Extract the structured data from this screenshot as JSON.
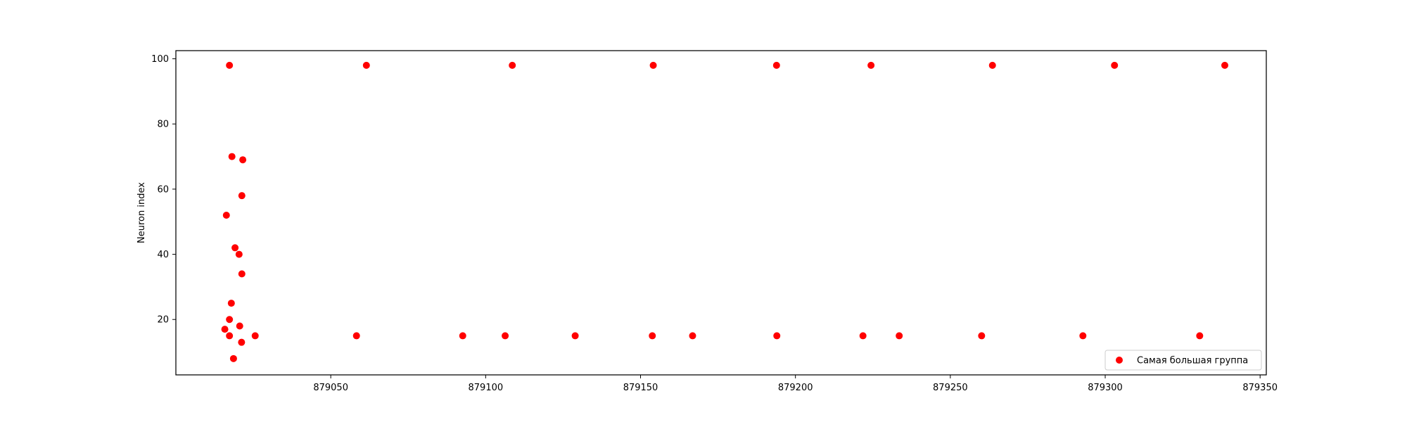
{
  "chart_data": {
    "type": "scatter",
    "title": "",
    "xlabel": "",
    "ylabel": "Neuron index",
    "xlim": [
      879000,
      879352
    ],
    "ylim": [
      3,
      102.5
    ],
    "xticks": [
      879050,
      879100,
      879150,
      879200,
      879250,
      879300,
      879350
    ],
    "xtick_labels": [
      "879050",
      "879100",
      "879150",
      "879200",
      "879250",
      "879300",
      "879350"
    ],
    "yticks": [
      20,
      40,
      60,
      80,
      100
    ],
    "ytick_labels": [
      "20",
      "40",
      "60",
      "80",
      "100"
    ],
    "grid": false,
    "legend_position": "lower right",
    "series": [
      {
        "name": "Самая большая группа",
        "color": "#ff0000",
        "marker": "circle",
        "points": [
          {
            "x": 879017.3,
            "y": 98
          },
          {
            "x": 879061.5,
            "y": 98
          },
          {
            "x": 879108.6,
            "y": 98
          },
          {
            "x": 879154.1,
            "y": 98
          },
          {
            "x": 879193.9,
            "y": 98
          },
          {
            "x": 879224.4,
            "y": 98
          },
          {
            "x": 879263.6,
            "y": 98
          },
          {
            "x": 879303.0,
            "y": 98
          },
          {
            "x": 879338.6,
            "y": 98
          },
          {
            "x": 879018.1,
            "y": 70
          },
          {
            "x": 879021.6,
            "y": 69
          },
          {
            "x": 879021.3,
            "y": 58
          },
          {
            "x": 879016.3,
            "y": 52
          },
          {
            "x": 879019.1,
            "y": 42
          },
          {
            "x": 879020.4,
            "y": 40
          },
          {
            "x": 879021.3,
            "y": 34
          },
          {
            "x": 879017.9,
            "y": 25
          },
          {
            "x": 879017.3,
            "y": 20
          },
          {
            "x": 879020.6,
            "y": 18
          },
          {
            "x": 879015.8,
            "y": 17
          },
          {
            "x": 879017.3,
            "y": 15
          },
          {
            "x": 879025.6,
            "y": 15
          },
          {
            "x": 879058.3,
            "y": 15
          },
          {
            "x": 879092.6,
            "y": 15
          },
          {
            "x": 879106.3,
            "y": 15
          },
          {
            "x": 879128.9,
            "y": 15
          },
          {
            "x": 879153.8,
            "y": 15
          },
          {
            "x": 879166.8,
            "y": 15
          },
          {
            "x": 879194.0,
            "y": 15
          },
          {
            "x": 879221.8,
            "y": 15
          },
          {
            "x": 879233.5,
            "y": 15
          },
          {
            "x": 879260.1,
            "y": 15
          },
          {
            "x": 879292.8,
            "y": 15
          },
          {
            "x": 879330.5,
            "y": 15
          },
          {
            "x": 879021.2,
            "y": 13
          },
          {
            "x": 879018.6,
            "y": 8
          }
        ]
      }
    ]
  }
}
